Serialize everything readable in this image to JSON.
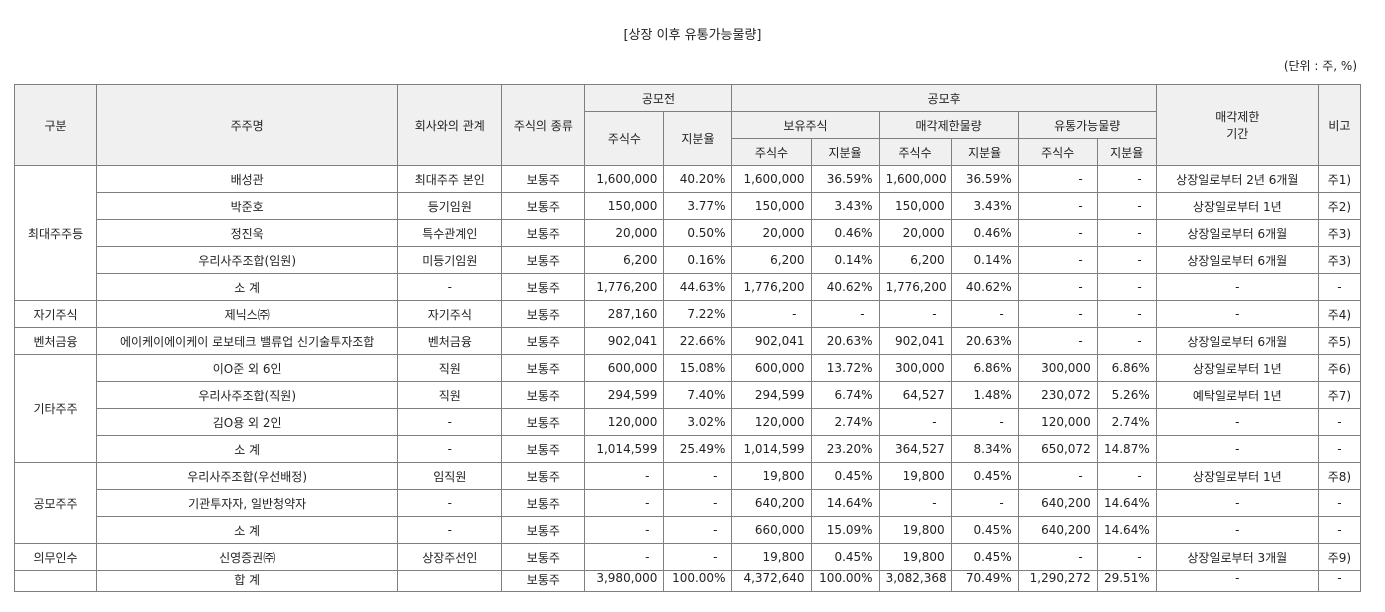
{
  "title": "[상장 이후 유통가능물량]",
  "unit": "(단위 : 주, %)",
  "headers": {
    "category": "구분",
    "holder": "주주명",
    "relation": "회사와의 관계",
    "stock_type": "주식의 종류",
    "pre_ipo": "공모전",
    "post_ipo": "공모후",
    "holding": "보유주식",
    "restricted": "매각제한물량",
    "tradable": "유통가능물량",
    "lockup_line1": "매각제한",
    "lockup_line2": "기간",
    "note": "비고",
    "shares": "주식수",
    "ratio": "지분율"
  },
  "groups": [
    {
      "category": "최대주주등",
      "rows": [
        {
          "holder": "배성관",
          "relation": "최대주주 본인",
          "type": "보통주",
          "pre_shares": "1,600,000",
          "pre_ratio": "40.20%",
          "hold_shares": "1,600,000",
          "hold_ratio": "36.59%",
          "res_shares": "1,600,000",
          "res_ratio": "36.59%",
          "trad_shares": "-",
          "trad_ratio": "-",
          "lockup": "상장일로부터 2년 6개월",
          "note": "주1)"
        },
        {
          "holder": "박준호",
          "relation": "등기임원",
          "type": "보통주",
          "pre_shares": "150,000",
          "pre_ratio": "3.77%",
          "hold_shares": "150,000",
          "hold_ratio": "3.43%",
          "res_shares": "150,000",
          "res_ratio": "3.43%",
          "trad_shares": "-",
          "trad_ratio": "-",
          "lockup": "상장일로부터 1년",
          "note": "주2)"
        },
        {
          "holder": "정진욱",
          "relation": "특수관계인",
          "type": "보통주",
          "pre_shares": "20,000",
          "pre_ratio": "0.50%",
          "hold_shares": "20,000",
          "hold_ratio": "0.46%",
          "res_shares": "20,000",
          "res_ratio": "0.46%",
          "trad_shares": "-",
          "trad_ratio": "-",
          "lockup": "상장일로부터 6개월",
          "note": "주3)"
        },
        {
          "holder": "우리사주조합(임원)",
          "relation": "미등기임원",
          "type": "보통주",
          "pre_shares": "6,200",
          "pre_ratio": "0.16%",
          "hold_shares": "6,200",
          "hold_ratio": "0.14%",
          "res_shares": "6,200",
          "res_ratio": "0.14%",
          "trad_shares": "-",
          "trad_ratio": "-",
          "lockup": "상장일로부터 6개월",
          "note": "주3)"
        },
        {
          "holder": "소 계",
          "relation": "-",
          "type": "보통주",
          "pre_shares": "1,776,200",
          "pre_ratio": "44.63%",
          "hold_shares": "1,776,200",
          "hold_ratio": "40.62%",
          "res_shares": "1,776,200",
          "res_ratio": "40.62%",
          "trad_shares": "-",
          "trad_ratio": "-",
          "lockup": "-",
          "note": "-"
        }
      ]
    },
    {
      "category": "자기주식",
      "rows": [
        {
          "holder": "제닉스㈜",
          "relation": "자기주식",
          "type": "보통주",
          "pre_shares": "287,160",
          "pre_ratio": "7.22%",
          "hold_shares": "-",
          "hold_ratio": "-",
          "res_shares": "-",
          "res_ratio": "-",
          "trad_shares": "-",
          "trad_ratio": "-",
          "lockup": "-",
          "note": "주4)"
        }
      ]
    },
    {
      "category": "벤처금융",
      "rows": [
        {
          "holder": "에이케이에이케이 로보테크 밸류업 신기술투자조합",
          "relation": "벤처금융",
          "type": "보통주",
          "pre_shares": "902,041",
          "pre_ratio": "22.66%",
          "hold_shares": "902,041",
          "hold_ratio": "20.63%",
          "res_shares": "902,041",
          "res_ratio": "20.63%",
          "trad_shares": "-",
          "trad_ratio": "-",
          "lockup": "상장일로부터 6개월",
          "note": "주5)"
        }
      ]
    },
    {
      "category": "기타주주",
      "rows": [
        {
          "holder": "이O준 외 6인",
          "relation": "직원",
          "type": "보통주",
          "pre_shares": "600,000",
          "pre_ratio": "15.08%",
          "hold_shares": "600,000",
          "hold_ratio": "13.72%",
          "res_shares": "300,000",
          "res_ratio": "6.86%",
          "trad_shares": "300,000",
          "trad_ratio": "6.86%",
          "lockup": "상장일로부터 1년",
          "note": "주6)"
        },
        {
          "holder": "우리사주조합(직원)",
          "relation": "직원",
          "type": "보통주",
          "pre_shares": "294,599",
          "pre_ratio": "7.40%",
          "hold_shares": "294,599",
          "hold_ratio": "6.74%",
          "res_shares": "64,527",
          "res_ratio": "1.48%",
          "trad_shares": "230,072",
          "trad_ratio": "5.26%",
          "lockup": "예탁일로부터 1년",
          "note": "주7)"
        },
        {
          "holder": "김O용 외 2인",
          "relation": "-",
          "type": "보통주",
          "pre_shares": "120,000",
          "pre_ratio": "3.02%",
          "hold_shares": "120,000",
          "hold_ratio": "2.74%",
          "res_shares": "-",
          "res_ratio": "-",
          "trad_shares": "120,000",
          "trad_ratio": "2.74%",
          "lockup": "-",
          "note": "-"
        },
        {
          "holder": "소 계",
          "relation": "-",
          "type": "보통주",
          "pre_shares": "1,014,599",
          "pre_ratio": "25.49%",
          "hold_shares": "1,014,599",
          "hold_ratio": "23.20%",
          "res_shares": "364,527",
          "res_ratio": "8.34%",
          "trad_shares": "650,072",
          "trad_ratio": "14.87%",
          "lockup": "-",
          "note": "-"
        }
      ]
    },
    {
      "category": "공모주주",
      "rows": [
        {
          "holder": "우리사주조합(우선배정)",
          "relation": "임직원",
          "type": "보통주",
          "pre_shares": "-",
          "pre_ratio": "-",
          "hold_shares": "19,800",
          "hold_ratio": "0.45%",
          "res_shares": "19,800",
          "res_ratio": "0.45%",
          "trad_shares": "-",
          "trad_ratio": "-",
          "lockup": "상장일로부터 1년",
          "note": "주8)"
        },
        {
          "holder": "기관투자자, 일반청약자",
          "relation": "-",
          "type": "보통주",
          "pre_shares": "-",
          "pre_ratio": "-",
          "hold_shares": "640,200",
          "hold_ratio": "14.64%",
          "res_shares": "-",
          "res_ratio": "-",
          "trad_shares": "640,200",
          "trad_ratio": "14.64%",
          "lockup": "-",
          "note": "-"
        },
        {
          "holder": "소 계",
          "relation": "-",
          "type": "보통주",
          "pre_shares": "-",
          "pre_ratio": "-",
          "hold_shares": "660,000",
          "hold_ratio": "15.09%",
          "res_shares": "19,800",
          "res_ratio": "0.45%",
          "trad_shares": "640,200",
          "trad_ratio": "14.64%",
          "lockup": "-",
          "note": "-"
        }
      ]
    },
    {
      "category": "의무인수",
      "rows": [
        {
          "holder": "신영증권㈜",
          "relation": "상장주선인",
          "type": "보통주",
          "pre_shares": "-",
          "pre_ratio": "-",
          "hold_shares": "19,800",
          "hold_ratio": "0.45%",
          "res_shares": "19,800",
          "res_ratio": "0.45%",
          "trad_shares": "-",
          "trad_ratio": "-",
          "lockup": "상장일로부터 3개월",
          "note": "주9)"
        }
      ]
    }
  ],
  "total": {
    "holder": "합        계",
    "relation": "",
    "type": "보통주",
    "pre_shares": "3,980,000",
    "pre_ratio": "100.00%",
    "hold_shares": "4,372,640",
    "hold_ratio": "100.00%",
    "res_shares": "3,082,368",
    "res_ratio": "70.49%",
    "trad_shares": "1,290,272",
    "trad_ratio": "29.51%",
    "lockup": "-",
    "note": "-"
  }
}
